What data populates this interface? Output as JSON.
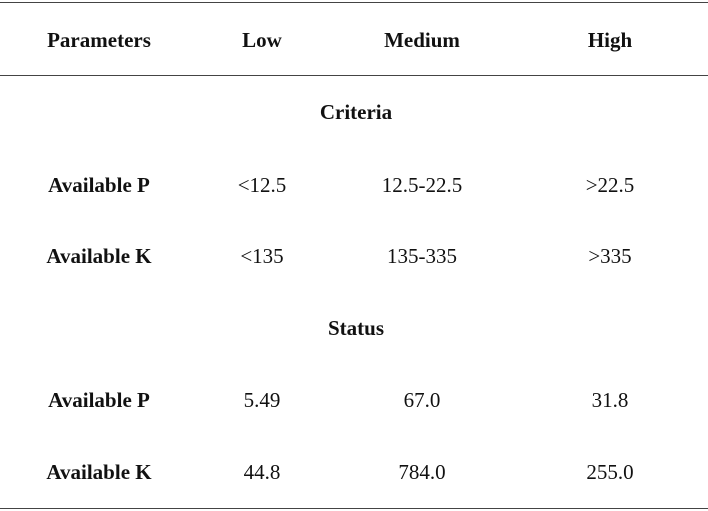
{
  "table": {
    "headers": [
      "Parameters",
      "Low",
      "Medium",
      "High"
    ],
    "sections": [
      {
        "title": "Criteria",
        "rows": [
          {
            "parameter": "Available P",
            "low": "<12.5",
            "medium": "12.5-22.5",
            "high": ">22.5"
          },
          {
            "parameter": "Available K",
            "low": "<135",
            "medium": "135-335",
            "high": ">335"
          }
        ]
      },
      {
        "title": "Status",
        "rows": [
          {
            "parameter": "Available P",
            "low": "5.49",
            "medium": "67.0",
            "high": "31.8"
          },
          {
            "parameter": "Available K",
            "low": "44.8",
            "medium": "784.0",
            "high": "255.0"
          }
        ]
      }
    ]
  }
}
